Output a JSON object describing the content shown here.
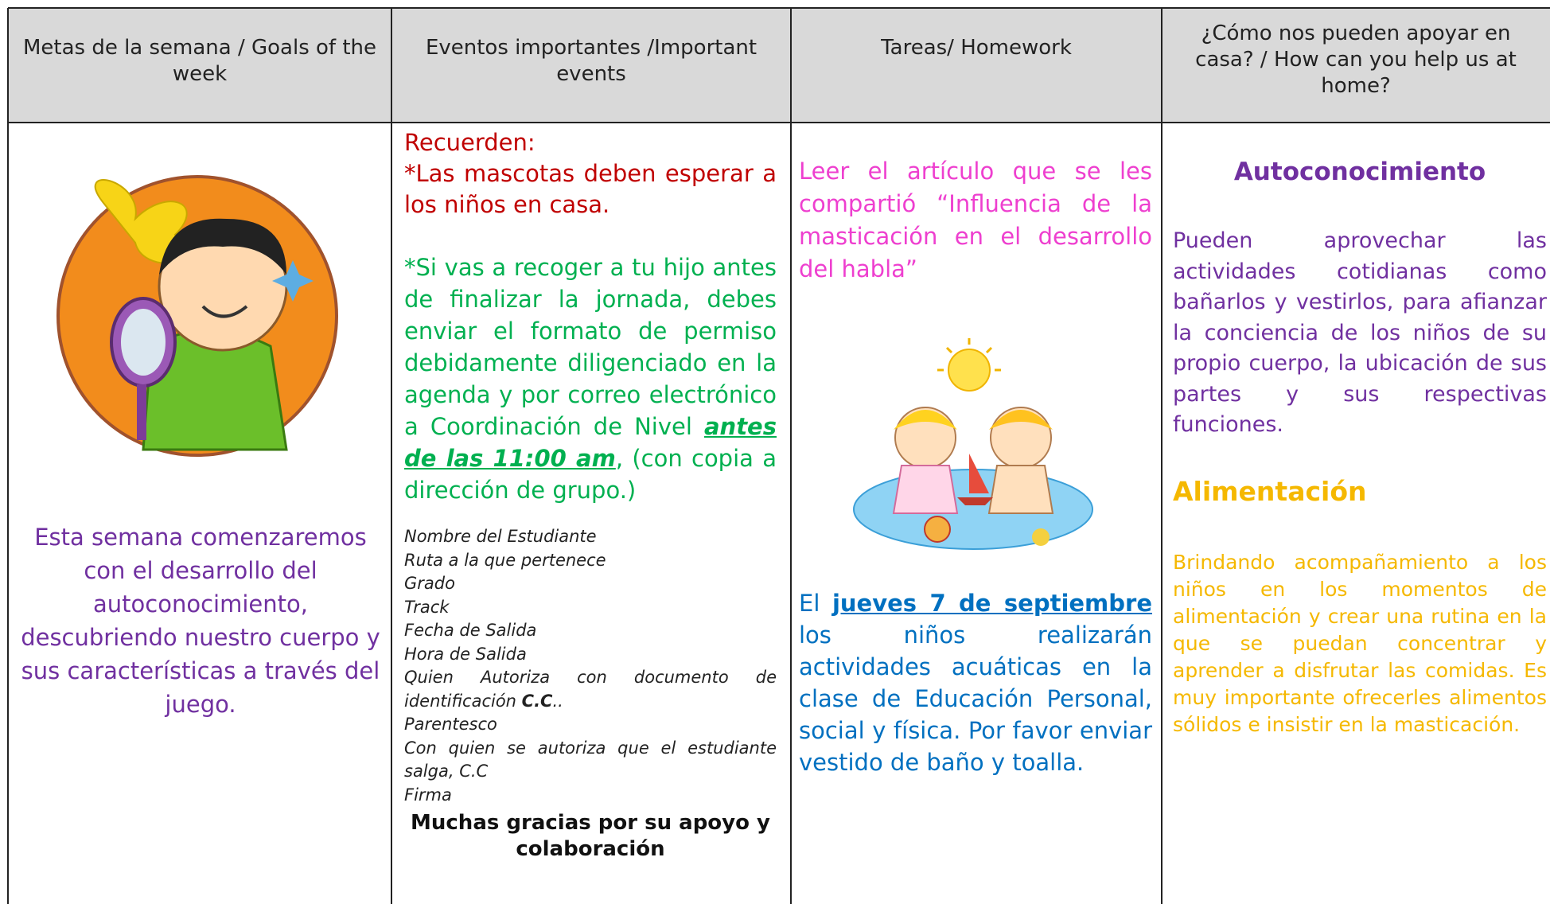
{
  "header": {
    "columns": [
      "Metas de la semana / Goals of the week",
      "Eventos importantes /Important events",
      "Tareas/ Homework",
      "¿Cómo nos pueden apoyar en casa? / How can you help us at home?"
    ]
  },
  "goals": {
    "text": "Esta semana comenzaremos con el desarrollo del autoconocimiento, descubriendo nuestro cuerpo y sus características a través del juego."
  },
  "events": {
    "reminder_title": "Recuerden:",
    "pets": "*Las mascotas deben esperar a los niños en casa.",
    "pickup": {
      "text": "*Si vas a recoger a tu hijo antes de finalizar la jornada, debes enviar el formato de permiso debidamente diligenciado en la agenda y por correo electrónico a Coordinación de Nivel ",
      "deadline": "antes de las 11:00 am",
      "end": ",  (con copia a dirección de grupo.)"
    },
    "form_fields": [
      "Nombre del Estudiante",
      "Ruta a la que pertenece",
      "Grado",
      "Track",
      "Fecha de Salida",
      "Hora de Salida",
      {
        "text": "Quien Autoriza con documento de identificación ",
        "bold": "C.C",
        "end": ".."
      },
      "Parentesco",
      "Con quien se autoriza que el estudiante salga,   C.C",
      "Firma"
    ],
    "thanks": "Muchas gracias por su apoyo y colaboración"
  },
  "homework": {
    "reading": "Leer el artículo que se les compartió “Influencia de la masticación en el desarrollo del habla”",
    "swimming": {
      "start": "El ",
      "date": "jueves 7 de septiembre",
      "text": " los niños realizarán actividades acuáticas en la clase de Educación Personal, social y física. Por favor enviar vestido de baño y toalla."
    }
  },
  "help": {
    "heading1": "Autoconocimiento",
    "paragraph1": "Pueden aprovechar las actividades cotidianas como bañarlos y vestirlos, para afianzar la conciencia de los niños de su propio cuerpo, la ubicación de sus partes y sus respectivas funciones.",
    "heading2": "Alimentación",
    "paragraph2": "Brindando acompañamiento a los niños en los momentos de alimentación y crear una rutina en la que se puedan concentrar y aprender a disfrutar las comidas. Es muy importante ofrecerles alimentos sólidos e insistir en la masticación."
  }
}
